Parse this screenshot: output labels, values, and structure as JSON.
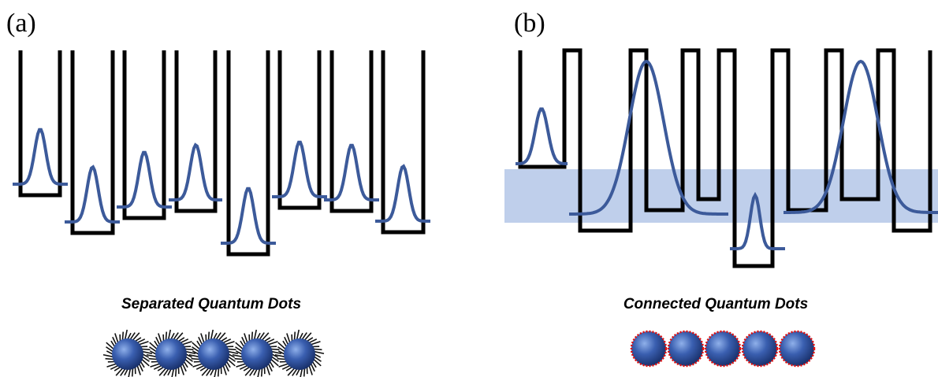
{
  "panels": [
    {
      "label": "(a)",
      "caption": "Separated Quantum Dots"
    },
    {
      "label": "(b)",
      "caption": "Connected Quantum Dots"
    }
  ]
}
